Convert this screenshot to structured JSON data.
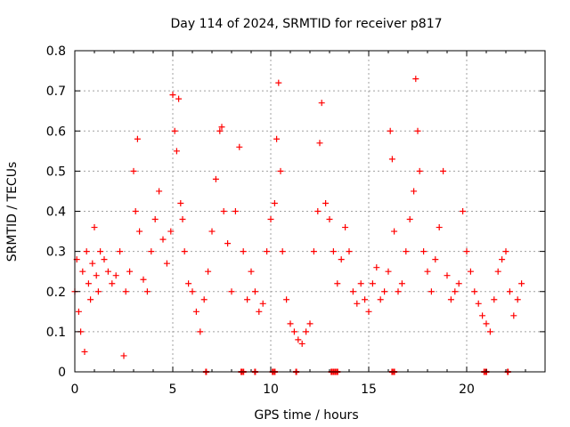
{
  "chart_data": {
    "type": "scatter",
    "title": "Day 114 of 2024, SRMTID for receiver p817",
    "xlabel": "GPS time / hours",
    "ylabel": "SRMTID / TECUs",
    "xlim": [
      0,
      24
    ],
    "ylim": [
      0,
      0.8
    ],
    "xticks": [
      0,
      5,
      10,
      15,
      20
    ],
    "xtick_labels": [
      "0",
      "5",
      "10",
      "15",
      "20"
    ],
    "yticks": [
      0,
      0.1,
      0.2,
      0.3,
      0.4,
      0.5,
      0.6,
      0.7,
      0.8
    ],
    "ytick_labels": [
      "0",
      "0.1",
      "0.2",
      "0.3",
      "0.4",
      "0.5",
      "0.6",
      "0.7",
      "0.8"
    ],
    "grid": true,
    "marker": "+",
    "color": "#ff0000",
    "series": [
      {
        "name": "SRMTID",
        "points": [
          [
            0.0,
            0.2
          ],
          [
            0.1,
            0.28
          ],
          [
            0.2,
            0.15
          ],
          [
            0.3,
            0.1
          ],
          [
            0.4,
            0.25
          ],
          [
            0.5,
            0.05
          ],
          [
            0.6,
            0.3
          ],
          [
            0.7,
            0.22
          ],
          [
            0.8,
            0.18
          ],
          [
            0.9,
            0.27
          ],
          [
            1.0,
            0.36
          ],
          [
            1.1,
            0.24
          ],
          [
            1.2,
            0.2
          ],
          [
            1.3,
            0.3
          ],
          [
            1.5,
            0.28
          ],
          [
            1.7,
            0.25
          ],
          [
            1.9,
            0.22
          ],
          [
            2.1,
            0.24
          ],
          [
            2.3,
            0.3
          ],
          [
            2.5,
            0.04
          ],
          [
            2.6,
            0.2
          ],
          [
            2.8,
            0.25
          ],
          [
            3.0,
            0.5
          ],
          [
            3.1,
            0.4
          ],
          [
            3.2,
            0.58
          ],
          [
            3.3,
            0.35
          ],
          [
            3.5,
            0.23
          ],
          [
            3.7,
            0.2
          ],
          [
            3.9,
            0.3
          ],
          [
            4.1,
            0.38
          ],
          [
            4.3,
            0.45
          ],
          [
            4.5,
            0.33
          ],
          [
            4.7,
            0.27
          ],
          [
            4.9,
            0.35
          ],
          [
            5.0,
            0.69
          ],
          [
            5.1,
            0.6
          ],
          [
            5.2,
            0.55
          ],
          [
            5.3,
            0.68
          ],
          [
            5.4,
            0.42
          ],
          [
            5.5,
            0.38
          ],
          [
            5.6,
            0.3
          ],
          [
            5.8,
            0.22
          ],
          [
            6.0,
            0.2
          ],
          [
            6.2,
            0.15
          ],
          [
            6.4,
            0.1
          ],
          [
            6.6,
            0.18
          ],
          [
            6.8,
            0.25
          ],
          [
            7.0,
            0.35
          ],
          [
            7.2,
            0.48
          ],
          [
            7.4,
            0.6
          ],
          [
            7.5,
            0.61
          ],
          [
            7.6,
            0.4
          ],
          [
            7.8,
            0.32
          ],
          [
            8.0,
            0.2
          ],
          [
            8.2,
            0.4
          ],
          [
            8.4,
            0.56
          ],
          [
            8.6,
            0.3
          ],
          [
            8.8,
            0.18
          ],
          [
            9.0,
            0.25
          ],
          [
            9.2,
            0.2
          ],
          [
            9.4,
            0.15
          ],
          [
            9.6,
            0.17
          ],
          [
            9.8,
            0.3
          ],
          [
            10.0,
            0.38
          ],
          [
            10.2,
            0.42
          ],
          [
            10.3,
            0.58
          ],
          [
            10.4,
            0.72
          ],
          [
            10.5,
            0.5
          ],
          [
            10.6,
            0.3
          ],
          [
            10.8,
            0.18
          ],
          [
            11.0,
            0.12
          ],
          [
            11.2,
            0.1
          ],
          [
            11.4,
            0.08
          ],
          [
            11.6,
            0.07
          ],
          [
            11.8,
            0.1
          ],
          [
            12.0,
            0.12
          ],
          [
            12.2,
            0.3
          ],
          [
            12.4,
            0.4
          ],
          [
            12.5,
            0.57
          ],
          [
            12.6,
            0.67
          ],
          [
            12.8,
            0.42
          ],
          [
            13.0,
            0.38
          ],
          [
            13.2,
            0.3
          ],
          [
            13.4,
            0.22
          ],
          [
            13.6,
            0.28
          ],
          [
            13.8,
            0.36
          ],
          [
            14.0,
            0.3
          ],
          [
            14.2,
            0.2
          ],
          [
            14.4,
            0.17
          ],
          [
            14.6,
            0.22
          ],
          [
            14.8,
            0.18
          ],
          [
            15.0,
            0.15
          ],
          [
            15.2,
            0.22
          ],
          [
            15.4,
            0.26
          ],
          [
            15.6,
            0.18
          ],
          [
            15.8,
            0.2
          ],
          [
            16.0,
            0.25
          ],
          [
            16.1,
            0.6
          ],
          [
            16.2,
            0.53
          ],
          [
            16.3,
            0.35
          ],
          [
            16.5,
            0.2
          ],
          [
            16.7,
            0.22
          ],
          [
            16.9,
            0.3
          ],
          [
            17.1,
            0.38
          ],
          [
            17.3,
            0.45
          ],
          [
            17.4,
            0.73
          ],
          [
            17.5,
            0.6
          ],
          [
            17.6,
            0.5
          ],
          [
            17.8,
            0.3
          ],
          [
            18.0,
            0.25
          ],
          [
            18.2,
            0.2
          ],
          [
            18.4,
            0.28
          ],
          [
            18.6,
            0.36
          ],
          [
            18.8,
            0.5
          ],
          [
            19.0,
            0.24
          ],
          [
            19.2,
            0.18
          ],
          [
            19.4,
            0.2
          ],
          [
            19.6,
            0.22
          ],
          [
            19.8,
            0.4
          ],
          [
            20.0,
            0.3
          ],
          [
            20.2,
            0.25
          ],
          [
            20.4,
            0.2
          ],
          [
            20.6,
            0.17
          ],
          [
            20.8,
            0.14
          ],
          [
            21.0,
            0.12
          ],
          [
            21.2,
            0.1
          ],
          [
            21.4,
            0.18
          ],
          [
            21.6,
            0.25
          ],
          [
            21.8,
            0.28
          ],
          [
            22.0,
            0.3
          ],
          [
            22.2,
            0.2
          ],
          [
            22.4,
            0.14
          ],
          [
            22.6,
            0.18
          ],
          [
            22.8,
            0.22
          ]
        ],
        "zero_markers": [
          6.7,
          8.5,
          8.6,
          9.2,
          10.1,
          10.2,
          11.3,
          13.1,
          13.2,
          13.3,
          13.4,
          16.2,
          16.3,
          20.9,
          21.0,
          22.1
        ]
      }
    ]
  }
}
